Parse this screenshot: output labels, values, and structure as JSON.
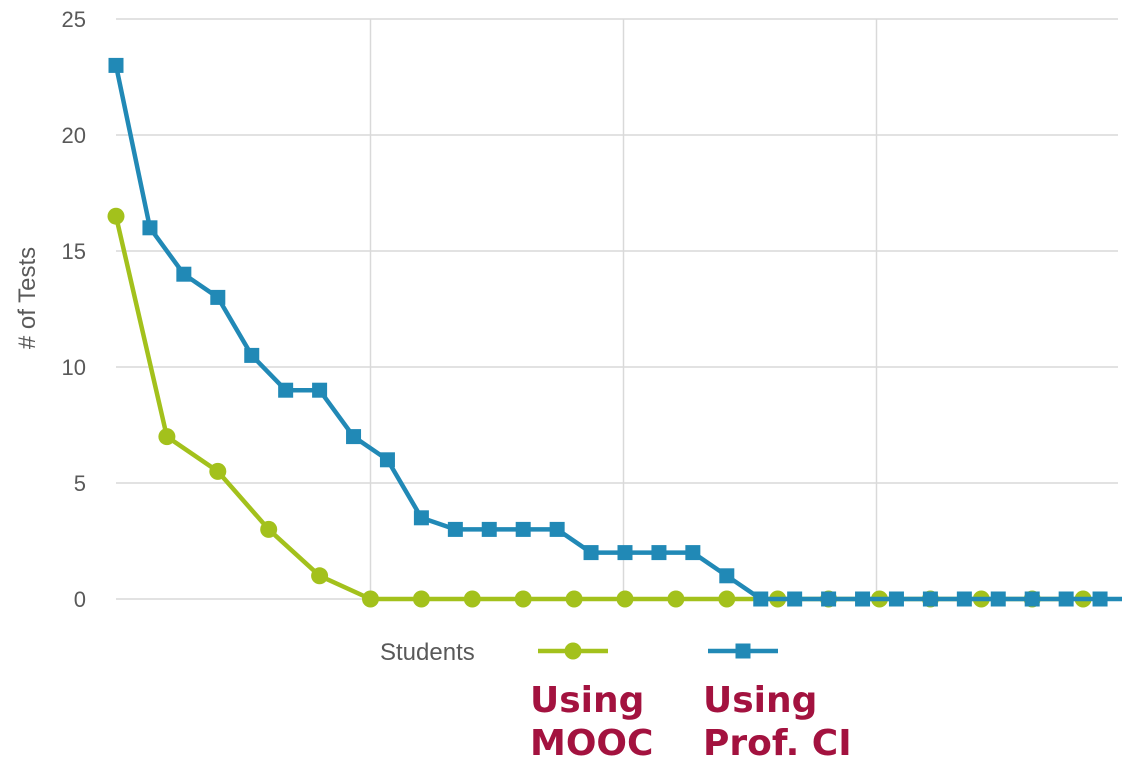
{
  "chart_data": {
    "type": "line",
    "ylabel": "# of Tests",
    "ylim": [
      0,
      25
    ],
    "yticks": [
      0,
      5,
      10,
      15,
      20,
      25
    ],
    "grid": true,
    "legend_title": "Students",
    "legend_position": "bottom",
    "series": [
      {
        "name": "Using MOOC",
        "label_lines": [
          "Using",
          "MOOC"
        ],
        "color": "#a3c11c",
        "marker": "circle",
        "x": [
          0,
          1,
          2,
          3,
          4,
          5,
          6,
          7,
          8,
          9,
          10,
          11,
          12,
          13,
          14,
          15,
          16,
          17,
          18,
          19
        ],
        "values": [
          16.5,
          7,
          5.5,
          3,
          1,
          0,
          0,
          0,
          0,
          0,
          0,
          0,
          0,
          0,
          0,
          0,
          0,
          0,
          0,
          0
        ]
      },
      {
        "name": "Using Prof. CI",
        "label_lines": [
          "Using",
          "Prof. CI"
        ],
        "color": "#2189b6",
        "marker": "square",
        "x": [
          0,
          0.667,
          1.333,
          2,
          2.667,
          3.333,
          4,
          4.667,
          5.333,
          6,
          6.667,
          7.333,
          8,
          8.667,
          9.333,
          10,
          10.667,
          11.333,
          12,
          12.667,
          13.333,
          14,
          14.667,
          15.333,
          16,
          16.667,
          17.333,
          18,
          18.667,
          19.333,
          20
        ],
        "values": [
          23,
          16,
          14,
          13,
          10.5,
          9,
          9,
          7,
          6,
          3.5,
          3,
          3,
          3,
          3,
          2,
          2,
          2,
          2,
          1,
          0,
          0,
          0,
          0,
          0,
          0,
          0,
          0,
          0,
          0,
          0,
          0
        ]
      }
    ]
  }
}
